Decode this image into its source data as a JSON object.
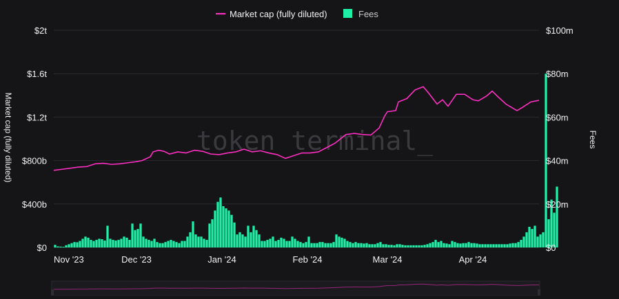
{
  "chart_data": {
    "type": "bar+line",
    "legend": [
      {
        "name": "Market cap (fully diluted)",
        "marker": "line",
        "color": "#ff2fc2"
      },
      {
        "name": "Fees",
        "marker": "square",
        "color": "#1ef0a7"
      }
    ],
    "legend_position": "top-center",
    "watermark": "token terminal_",
    "x_tick_labels": [
      "Nov '23",
      "Dec '23",
      "Jan '24",
      "Feb '24",
      "Mar '24",
      "Apr '24"
    ],
    "left_axis": {
      "title": "Market cap (fully diluted)",
      "range": [
        0,
        2000000000000
      ],
      "ticks": [
        0,
        400000000000,
        800000000000,
        1200000000000,
        1600000000000,
        2000000000000
      ],
      "tick_labels": [
        "$0",
        "$400b",
        "$800b",
        "$1.2t",
        "$1.6t",
        "$2t"
      ]
    },
    "right_axis": {
      "title": "Fees",
      "range": [
        0,
        100000000
      ],
      "ticks": [
        0,
        20000000,
        40000000,
        60000000,
        80000000,
        100000000
      ],
      "tick_labels": [
        "$0",
        "$20m",
        "$40m",
        "$60m",
        "$80m",
        "$100m"
      ]
    },
    "grid": "horizontal",
    "x_range": [
      "2023-11-01",
      "2024-04-25"
    ],
    "series": [
      {
        "name": "Market cap (fully diluted)",
        "type": "line",
        "axis": "left",
        "unit": "USD billions",
        "color": "#ff2fc2",
        "points": [
          [
            "2023-11-01",
            710
          ],
          [
            "2023-11-04",
            720
          ],
          [
            "2023-11-07",
            730
          ],
          [
            "2023-11-10",
            740
          ],
          [
            "2023-11-13",
            745
          ],
          [
            "2023-11-16",
            770
          ],
          [
            "2023-11-19",
            775
          ],
          [
            "2023-11-22",
            765
          ],
          [
            "2023-11-25",
            770
          ],
          [
            "2023-11-28",
            780
          ],
          [
            "2023-12-01",
            790
          ],
          [
            "2023-12-03",
            800
          ],
          [
            "2023-12-06",
            835
          ],
          [
            "2023-12-07",
            880
          ],
          [
            "2023-12-09",
            895
          ],
          [
            "2023-12-11",
            885
          ],
          [
            "2023-12-13",
            860
          ],
          [
            "2023-12-16",
            880
          ],
          [
            "2023-12-19",
            870
          ],
          [
            "2023-12-22",
            895
          ],
          [
            "2023-12-25",
            885
          ],
          [
            "2023-12-28",
            860
          ],
          [
            "2023-12-31",
            855
          ],
          [
            "2024-01-03",
            870
          ],
          [
            "2024-01-06",
            880
          ],
          [
            "2024-01-09",
            905
          ],
          [
            "2024-01-12",
            880
          ],
          [
            "2024-01-15",
            890
          ],
          [
            "2024-01-18",
            870
          ],
          [
            "2024-01-21",
            855
          ],
          [
            "2024-01-24",
            820
          ],
          [
            "2024-01-27",
            845
          ],
          [
            "2024-01-30",
            870
          ],
          [
            "2024-02-02",
            870
          ],
          [
            "2024-02-05",
            880
          ],
          [
            "2024-02-08",
            920
          ],
          [
            "2024-02-11",
            960
          ],
          [
            "2024-02-13",
            1000
          ],
          [
            "2024-02-15",
            1040
          ],
          [
            "2024-02-18",
            1050
          ],
          [
            "2024-02-21",
            1040
          ],
          [
            "2024-02-24",
            1035
          ],
          [
            "2024-02-27",
            1100
          ],
          [
            "2024-02-29",
            1210
          ],
          [
            "2024-03-01",
            1250
          ],
          [
            "2024-03-04",
            1260
          ],
          [
            "2024-03-05",
            1340
          ],
          [
            "2024-03-08",
            1370
          ],
          [
            "2024-03-11",
            1450
          ],
          [
            "2024-03-14",
            1480
          ],
          [
            "2024-03-16",
            1420
          ],
          [
            "2024-03-19",
            1320
          ],
          [
            "2024-03-21",
            1360
          ],
          [
            "2024-03-23",
            1300
          ],
          [
            "2024-03-26",
            1410
          ],
          [
            "2024-03-29",
            1410
          ],
          [
            "2024-04-01",
            1360
          ],
          [
            "2024-04-03",
            1350
          ],
          [
            "2024-04-06",
            1395
          ],
          [
            "2024-04-08",
            1440
          ],
          [
            "2024-04-10",
            1390
          ],
          [
            "2024-04-13",
            1320
          ],
          [
            "2024-04-15",
            1290
          ],
          [
            "2024-04-17",
            1260
          ],
          [
            "2024-04-19",
            1290
          ],
          [
            "2024-04-22",
            1340
          ],
          [
            "2024-04-25",
            1355
          ]
        ]
      },
      {
        "name": "Fees",
        "type": "bar",
        "axis": "right",
        "unit": "USD millions",
        "color": "#1ef0a7",
        "start_date": "2023-11-01",
        "interval_days": 1,
        "values": [
          1.2,
          0.5,
          0.4,
          0.3,
          1.0,
          1.5,
          2.0,
          2.5,
          2.4,
          3.0,
          4.0,
          5.0,
          4.5,
          3.5,
          3.0,
          3.5,
          4.0,
          3.8,
          3.2,
          10.0,
          4.0,
          3.5,
          3.2,
          3.5,
          4.0,
          5.0,
          4.5,
          3.5,
          11.0,
          8.0,
          8.5,
          11.0,
          5.0,
          4.0,
          3.5,
          3.0,
          4.0,
          2.5,
          2.0,
          2.0,
          2.5,
          3.0,
          3.5,
          3.0,
          2.5,
          2.0,
          3.0,
          3.0,
          5.0,
          7.0,
          12.0,
          6.0,
          5.0,
          5.0,
          4.0,
          3.5,
          11.0,
          13.0,
          17.0,
          21.0,
          23.0,
          19.0,
          18.0,
          17.0,
          15.0,
          11.5,
          6.0,
          7.0,
          6.0,
          5.0,
          10.0,
          7.0,
          10.0,
          8.0,
          6.0,
          3.0,
          3.0,
          3.5,
          4.0,
          5.0,
          3.0,
          3.5,
          4.5,
          4.0,
          3.0,
          3.0,
          5.0,
          4.0,
          3.0,
          2.5,
          2.0,
          2.5,
          5.0,
          2.0,
          2.0,
          2.0,
          2.5,
          2.5,
          2.0,
          2.0,
          2.0,
          2.5,
          6.0,
          5.0,
          4.5,
          4.0,
          3.0,
          2.5,
          2.0,
          2.5,
          2.0,
          2.0,
          1.8,
          2.0,
          1.5,
          1.5,
          1.5,
          2.0,
          2.5,
          1.5,
          1.5,
          1.2,
          1.2,
          1.0,
          1.5,
          1.5,
          1.2,
          1.0,
          1.0,
          1.0,
          1.0,
          1.0,
          1.0,
          1.0,
          1.2,
          1.5,
          2.0,
          2.5,
          3.5,
          2.5,
          3.0,
          2.0,
          1.8,
          1.5,
          3.0,
          2.5,
          2.0,
          1.8,
          2.0,
          2.0,
          2.5,
          2.0,
          2.0,
          1.8,
          1.5,
          1.5,
          1.5,
          1.5,
          1.5,
          1.5,
          1.5,
          1.5,
          1.5,
          1.5,
          1.5,
          1.8,
          2.0,
          2.0,
          2.5,
          3.5,
          5.0,
          7.0,
          9.5,
          8.5,
          10.0,
          5.0,
          6.0,
          7.0,
          80.0,
          13.0,
          22.0,
          16.0,
          28.0
        ]
      }
    ]
  }
}
